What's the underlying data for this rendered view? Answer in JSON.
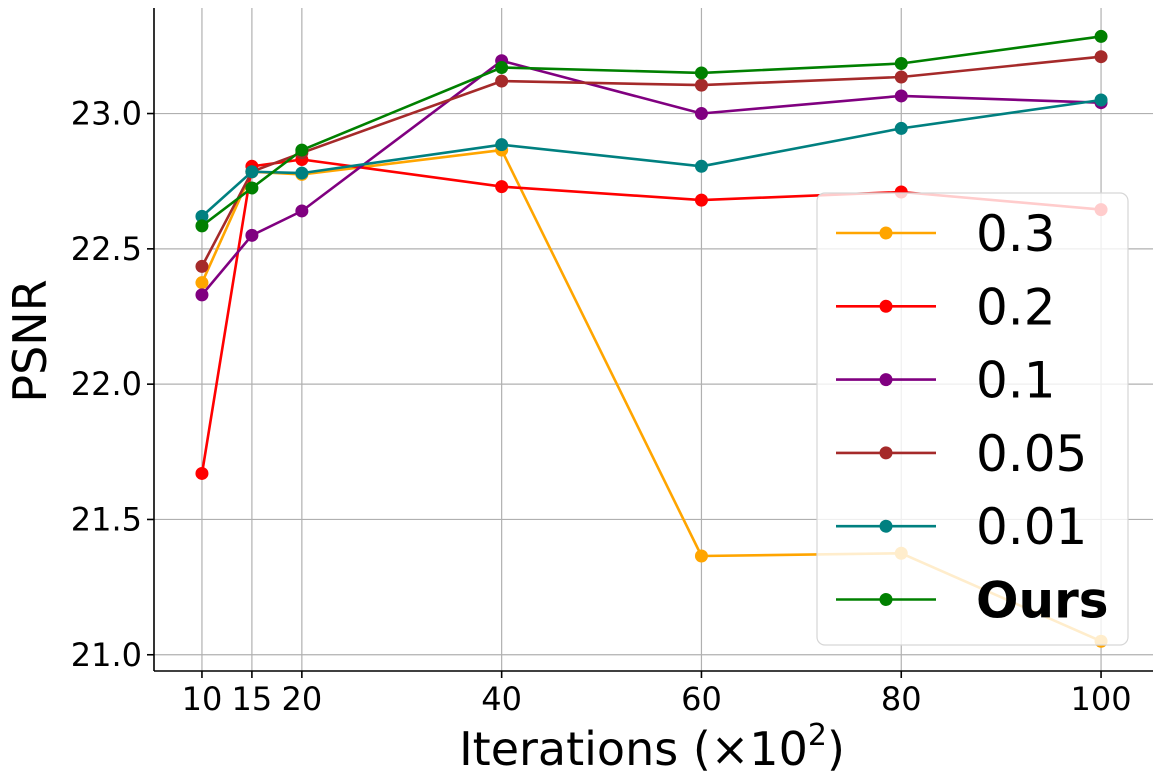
{
  "chart_data": {
    "type": "line",
    "title": "",
    "xlabel_prefix": "Iterations (",
    "xlabel_symbol": "×10",
    "xlabel_exponent": "2",
    "xlabel_suffix": ")",
    "ylabel": "PSNR",
    "x": [
      10,
      15,
      20,
      40,
      60,
      80,
      100
    ],
    "x_tick_labels": [
      "10",
      "15",
      "20",
      "40",
      "60",
      "80",
      "100"
    ],
    "y_ticks": [
      21.0,
      21.5,
      22.0,
      22.5,
      23.0
    ],
    "y_tick_labels": [
      "21.0",
      "21.5",
      "22.0",
      "22.5",
      "23.0"
    ],
    "xlim": [
      5.2,
      105.2
    ],
    "ylim": [
      20.94,
      23.39
    ],
    "grid": true,
    "legend_position": "lower-right",
    "series": [
      {
        "name": "0.3",
        "color": "#ffa500",
        "bold": false,
        "values": [
          22.375,
          22.785,
          22.775,
          22.865,
          21.365,
          21.375,
          21.05
        ]
      },
      {
        "name": "0.2",
        "color": "#ff0000",
        "bold": false,
        "values": [
          21.67,
          22.805,
          22.83,
          22.73,
          22.68,
          22.71,
          22.645
        ]
      },
      {
        "name": "0.1",
        "color": "#800080",
        "bold": false,
        "values": [
          22.33,
          22.55,
          22.64,
          23.195,
          23.0,
          23.065,
          23.04
        ]
      },
      {
        "name": "0.05",
        "color": "#a52a2a",
        "bold": false,
        "values": [
          22.435,
          22.785,
          22.855,
          23.12,
          23.105,
          23.135,
          23.21
        ]
      },
      {
        "name": "0.01",
        "color": "#008080",
        "bold": false,
        "values": [
          22.62,
          22.785,
          22.78,
          22.885,
          22.805,
          22.945,
          23.05
        ]
      },
      {
        "name": "Ours",
        "color": "#008000",
        "bold": true,
        "values": [
          22.585,
          22.725,
          22.865,
          23.17,
          23.15,
          23.185,
          23.285
        ]
      }
    ]
  }
}
